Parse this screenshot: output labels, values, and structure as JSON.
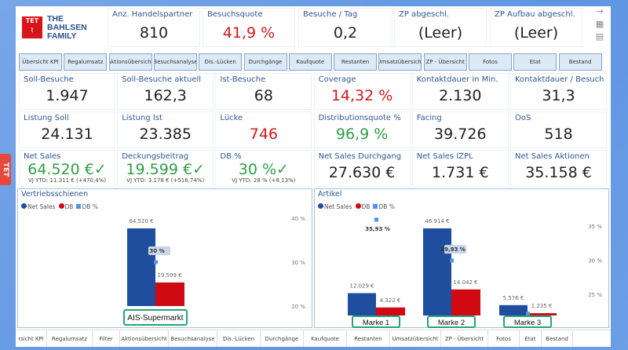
{
  "logo": {
    "mark": "TET",
    "text": [
      "THE",
      "BAHLSEN",
      "FAMILY"
    ]
  },
  "top_kpis": [
    {
      "label": "Anz. Handelspartner",
      "value": "810",
      "color": "#222222"
    },
    {
      "label": "Besuchsquote",
      "value": "41,9 %",
      "color": "#d01a1f"
    },
    {
      "label": "Besuche / Tag",
      "value": "0,2",
      "color": "#222222"
    },
    {
      "label": "ZP abgeschl.",
      "value": "(Leer)",
      "color": "#222222"
    },
    {
      "label": "ZP Aufbau abgeschl.",
      "value": "(Leer)",
      "color": "#222222"
    }
  ],
  "side_icons": [
    "arrow-right-icon",
    "table-icon",
    "report-icon"
  ],
  "nav_buttons": [
    "Übersicht KPI",
    "Regalumsatz",
    "Aktionsübersicht",
    "Besuchsanalyse",
    "Dis.-Lücken",
    "Durchgänge",
    "Kaufquote",
    "Restanten",
    "Umsatzübersicht",
    "ZP - Übersicht",
    "Fotos",
    "Etat",
    "Bestand"
  ],
  "kpi_grid": [
    [
      {
        "label": "Soll-Besuche",
        "value": "1.947"
      },
      {
        "label": "Soll-Besuche aktuell",
        "value": "162,3"
      },
      {
        "label": "Ist-Besuche",
        "value": "68"
      },
      {
        "label": "Coverage",
        "value": "14,32 %",
        "color": "#d01a1f"
      },
      {
        "label": "Kontaktdauer in Min.",
        "value": "2.130"
      },
      {
        "label": "Kontaktdauer / Besuch",
        "value": "31,3"
      }
    ],
    [
      {
        "label": "Listung Soll",
        "value": "24.131"
      },
      {
        "label": "Listung Ist",
        "value": "23.385"
      },
      {
        "label": "Lücke",
        "value": "746",
        "color": "#d01a1f"
      },
      {
        "label": "Distributionsquote %",
        "value": "96,9 %",
        "color": "#2f9e46"
      },
      {
        "label": "Facing",
        "value": "39.726"
      },
      {
        "label": "OoS",
        "value": "518"
      }
    ],
    [
      {
        "label": "Net Sales",
        "value": "64.520 €✓",
        "color": "#2f9e46",
        "sub": "VJ YTD: 11.311 € (+470,4%)"
      },
      {
        "label": "Deckungsbeitrag",
        "value": "19.599 €✓",
        "color": "#2f9e46",
        "sub": "VJ YTD: 3.178 € (+516,74%)"
      },
      {
        "label": "DB %",
        "value": "30 %✓",
        "color": "#2f9e46",
        "sub": "VJ YTD: 28 % (+8,13%)"
      },
      {
        "label": "Net Sales Durchgang",
        "value": "27.630 €"
      },
      {
        "label": "Net Sales IZPL",
        "value": "1.731 €"
      },
      {
        "label": "Net Sales Aktionen",
        "value": "35.158 €"
      }
    ]
  ],
  "side_tag": "TET",
  "legend": {
    "net_sales": "Net Sales",
    "db": "DB",
    "db_pct": "DB %"
  },
  "colors": {
    "net_sales": "#1f4e9e",
    "db": "#d00a12",
    "db_pct": "#4c94ec",
    "highlight": "#23a37d"
  },
  "chart_data": [
    {
      "type": "bar",
      "title": "Vertriebsschienen",
      "categories": [
        "AIS-Supermarkt"
      ],
      "series": [
        {
          "name": "Net Sales",
          "values": [
            64520
          ],
          "labels": [
            "64.520 €"
          ]
        },
        {
          "name": "DB",
          "values": [
            19599
          ],
          "labels": [
            "19.599 €"
          ]
        },
        {
          "name": "DB %",
          "type": "point",
          "axis": "right",
          "values": [
            30
          ],
          "labels": [
            "30 %"
          ]
        }
      ],
      "y2_ticks": [
        "20 %",
        "30 %",
        "40 %"
      ],
      "y2_tick_values": [
        20,
        30,
        40
      ]
    },
    {
      "type": "bar",
      "title": "Artikel",
      "categories": [
        "Marke 1",
        "Marke 2",
        "Marke 3"
      ],
      "series": [
        {
          "name": "Net Sales",
          "values": [
            12029,
            46914,
            5576
          ],
          "labels": [
            "12.029 €",
            "46.914 €",
            "5.576 €"
          ]
        },
        {
          "name": "DB",
          "values": [
            4322,
            14042,
            1235
          ],
          "labels": [
            "4.322 €",
            "14.042 €",
            "1.235 €"
          ]
        },
        {
          "name": "DB %",
          "type": "point",
          "axis": "right",
          "values": [
            35.93,
            29.93,
            22.15
          ],
          "labels": [
            "35,93 %",
            "29,93 %",
            ""
          ]
        }
      ],
      "y2_ticks": [
        "25 %",
        "30 %",
        "35 %"
      ],
      "y2_tick_values": [
        25,
        30,
        35
      ]
    }
  ],
  "bottom_tabs": [
    "rsicht KPI",
    "Regalumsatz",
    "Filter",
    "Aktionsübersicht",
    "Besuchsanalyse",
    "Dis.-Lücken",
    "Durchgänge",
    "Kaufquote",
    "Restanten",
    "Umsatzübersicht",
    "ZP - Übersicht",
    "Fotos",
    "Etat",
    "Bestand"
  ]
}
